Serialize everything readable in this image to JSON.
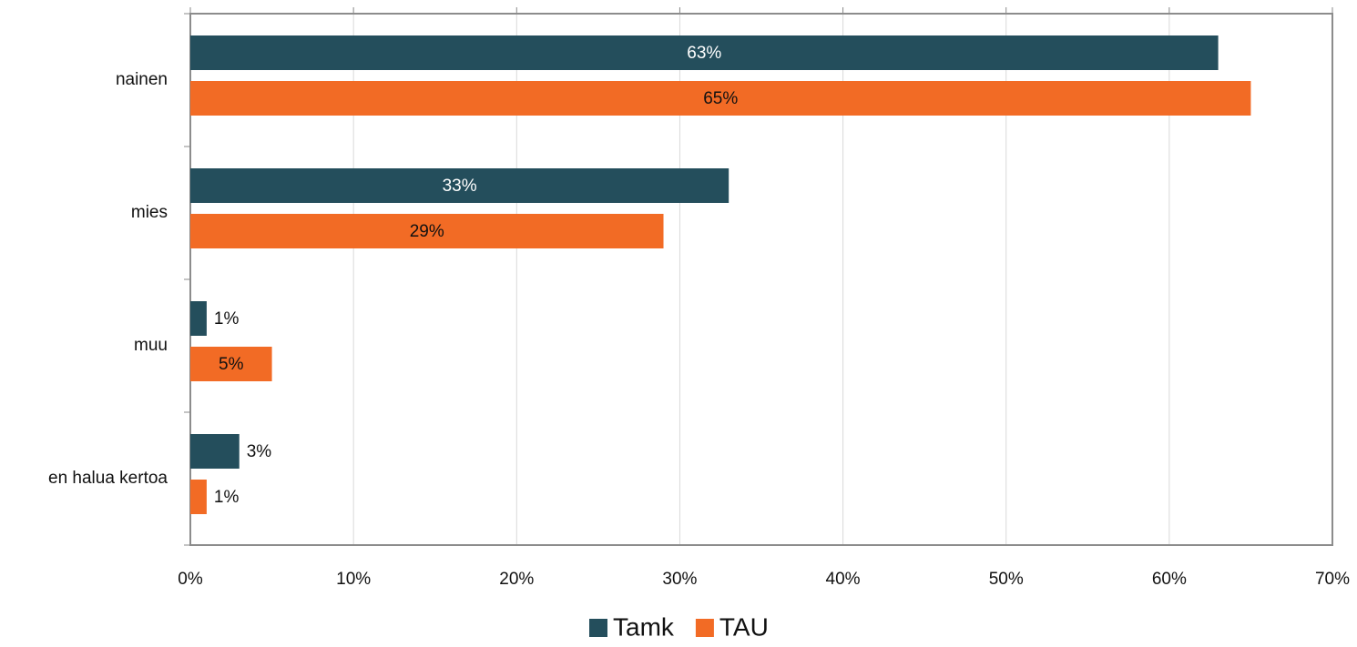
{
  "chart_data": {
    "type": "hbar",
    "categories": [
      "nainen",
      "mies",
      "muu",
      "en halua kertoa"
    ],
    "series": [
      {
        "name": "Tamk",
        "color": "#244e5c",
        "values": [
          63,
          33,
          1,
          3
        ],
        "value_labels": [
          "63%",
          "33%",
          "1%",
          "3%"
        ]
      },
      {
        "name": "TAU",
        "color": "#f26b25",
        "values": [
          65,
          29,
          5,
          1
        ],
        "value_labels": [
          "65%",
          "29%",
          "5%",
          "1%"
        ]
      }
    ],
    "xlim": [
      0,
      70
    ],
    "xticks": [
      {
        "value": 0,
        "label": "0%"
      },
      {
        "value": 10,
        "label": "10%"
      },
      {
        "value": 20,
        "label": "20%"
      },
      {
        "value": 30,
        "label": "30%"
      },
      {
        "value": 40,
        "label": "40%"
      },
      {
        "value": 50,
        "label": "50%"
      },
      {
        "value": 60,
        "label": "60%"
      },
      {
        "value": 70,
        "label": "70%"
      }
    ],
    "grid": true,
    "legend": "bottom"
  }
}
